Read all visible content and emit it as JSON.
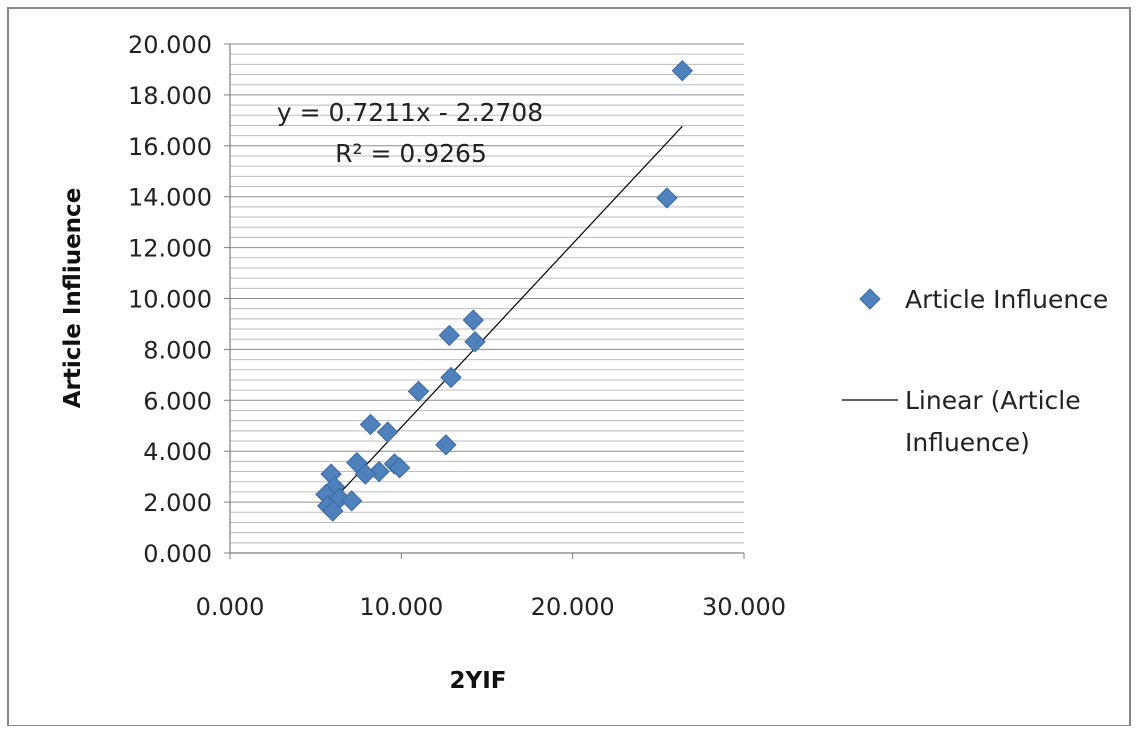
{
  "chart_data": {
    "type": "scatter",
    "title": "",
    "xlabel": "2YIF",
    "ylabel": "Article Infliuence",
    "xlim": [
      0,
      30
    ],
    "ylim": [
      0,
      20
    ],
    "x_ticks": [
      "0.000",
      "10.000",
      "20.000",
      "30.000"
    ],
    "y_ticks": [
      "0.000",
      "2.000",
      "4.000",
      "6.000",
      "8.000",
      "10.000",
      "12.000",
      "14.000",
      "16.000",
      "18.000",
      "20.000"
    ],
    "grid": "horizontal",
    "legend_position": "right",
    "series": [
      {
        "name": "Article Influence",
        "color": "#4f81bd",
        "marker": "diamond",
        "points": [
          [
            26.4,
            18.95
          ],
          [
            25.5,
            13.95
          ],
          [
            14.2,
            9.15
          ],
          [
            14.3,
            8.3
          ],
          [
            12.8,
            8.55
          ],
          [
            12.9,
            6.9
          ],
          [
            11.0,
            6.35
          ],
          [
            12.6,
            4.25
          ],
          [
            8.2,
            5.05
          ],
          [
            9.2,
            4.75
          ],
          [
            7.4,
            3.55
          ],
          [
            9.6,
            3.5
          ],
          [
            9.9,
            3.35
          ],
          [
            8.7,
            3.2
          ],
          [
            7.9,
            3.1
          ],
          [
            5.9,
            3.1
          ],
          [
            6.1,
            2.6
          ],
          [
            5.6,
            2.3
          ],
          [
            6.4,
            2.15
          ],
          [
            7.1,
            2.05
          ],
          [
            5.7,
            1.85
          ],
          [
            6.0,
            1.65
          ]
        ]
      }
    ],
    "trendline": {
      "name": "Linear (Article Influence)",
      "slope": 0.7211,
      "intercept": -2.2708,
      "x_range": [
        5.6,
        26.4
      ],
      "equation": "y = 0.7211x - 2.2708",
      "r_squared": "R² = 0.9265",
      "color": "#000000"
    },
    "legend": {
      "markers_label": "Article Influence",
      "trend_label_line1": "Linear (Article",
      "trend_label_line2": "Influence)"
    }
  }
}
